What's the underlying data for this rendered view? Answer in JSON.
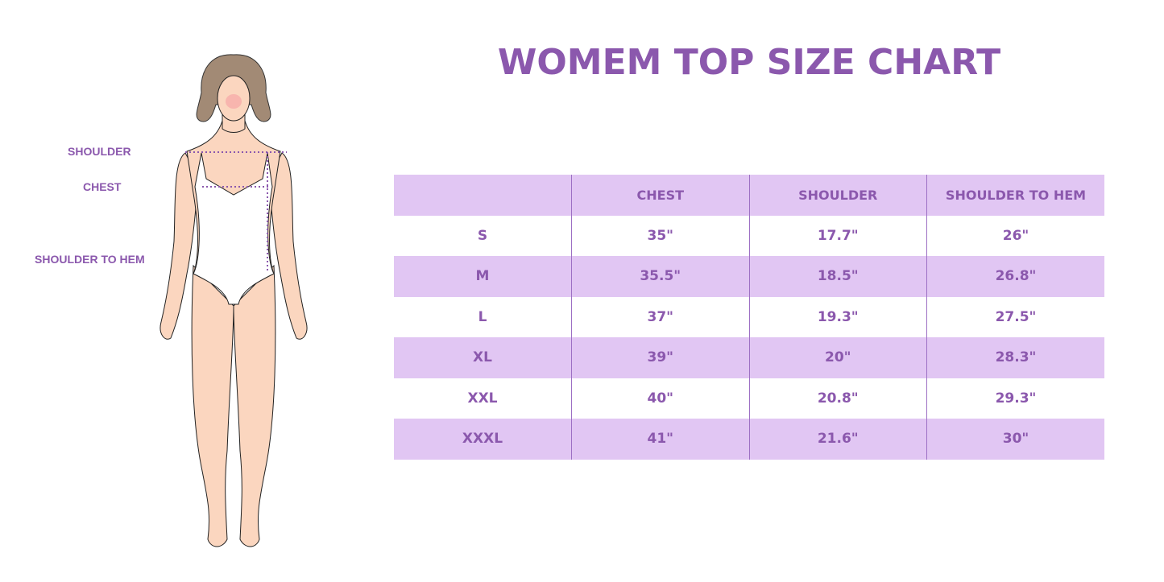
{
  "title": "WOMEM TOP SIZE CHART",
  "measurement_labels": {
    "shoulder": "SHOULDER",
    "chest": "CHEST",
    "shoulder_to_hem": "SHOULDER TO HEM"
  },
  "colors": {
    "accent": "#8b58ad",
    "row_shade": "#e1c6f3",
    "skin": "#fbd6bf",
    "hair": "#a28a75"
  },
  "table": {
    "headers": [
      "",
      "CHEST",
      "SHOULDER",
      "SHOULDER TO HEM"
    ],
    "rows": [
      {
        "size": "S",
        "chest": "35\"",
        "shoulder": "17.7\"",
        "hem": "26\""
      },
      {
        "size": "M",
        "chest": "35.5\"",
        "shoulder": "18.5\"",
        "hem": "26.8\""
      },
      {
        "size": "L",
        "chest": "37\"",
        "shoulder": "19.3\"",
        "hem": "27.5\""
      },
      {
        "size": "XL",
        "chest": "39\"",
        "shoulder": "20\"",
        "hem": "28.3\""
      },
      {
        "size": "XXL",
        "chest": "40\"",
        "shoulder": "20.8\"",
        "hem": "29.3\""
      },
      {
        "size": "XXXL",
        "chest": "41\"",
        "shoulder": "21.6\"",
        "hem": "30\""
      }
    ]
  }
}
